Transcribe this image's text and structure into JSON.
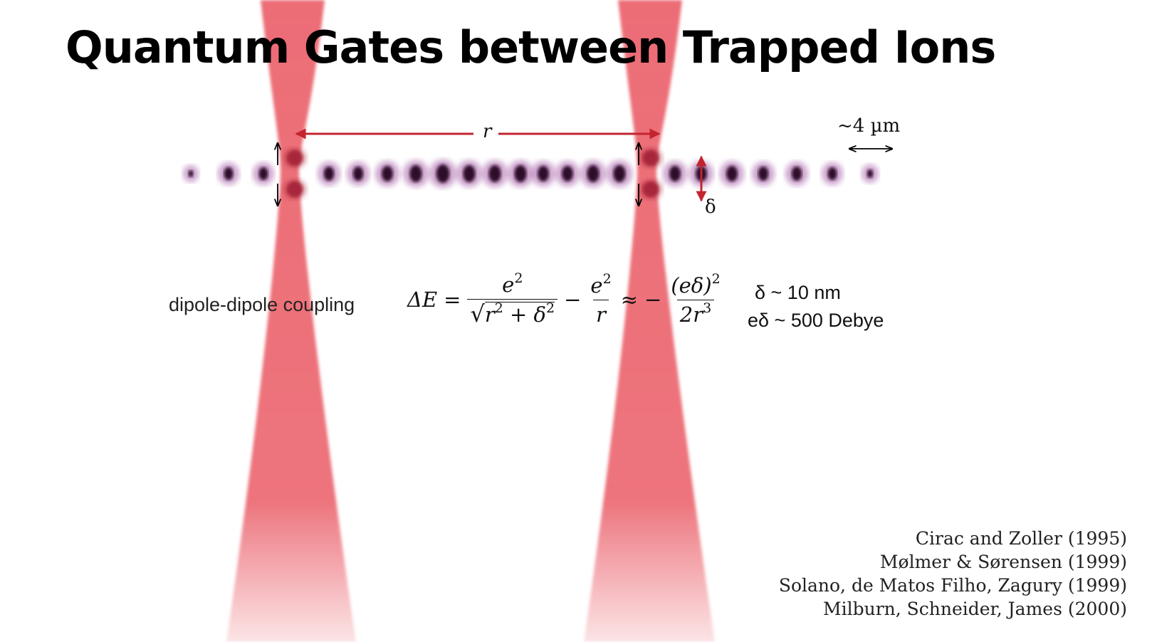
{
  "title": "Quantum Gates between Trapped Ions",
  "diagram": {
    "separation_label": "r",
    "scale_label": "~4 µm",
    "displacement_label": "δ",
    "colors": {
      "beam": "#ec6d76",
      "ion": "#2d0c29",
      "ion_glow": "#a45aa5",
      "excited_ion": "#a8283b",
      "arrow_red": "#c22530",
      "arrow_black": "#000000"
    }
  },
  "equation": {
    "label": "dipole-dipole coupling",
    "lhs": "ΔE",
    "eq_sign": "=",
    "term1_num": "e",
    "term1_num_exp": "2",
    "term1_den_r": "r",
    "term1_den_delta": "δ",
    "term1_den_exp": "2",
    "term1_den_plus": "+",
    "minus": "−",
    "term2_num": "e",
    "term2_num_exp": "2",
    "term2_den": "r",
    "approx": "≈",
    "minus2": "−",
    "term3_num": "(eδ)",
    "term3_num_exp": "2",
    "term3_den": "2r",
    "term3_den_exp": "3"
  },
  "parameters": [
    "δ ~ 10 nm",
    "eδ ~ 500 Debye"
  ],
  "references": [
    "Cirac and Zoller (1995)",
    "Mølmer & Sørensen (1999)",
    "Solano, de Matos Filho, Zagury (1999)",
    "Milburn, Schneider, James (2000)"
  ]
}
